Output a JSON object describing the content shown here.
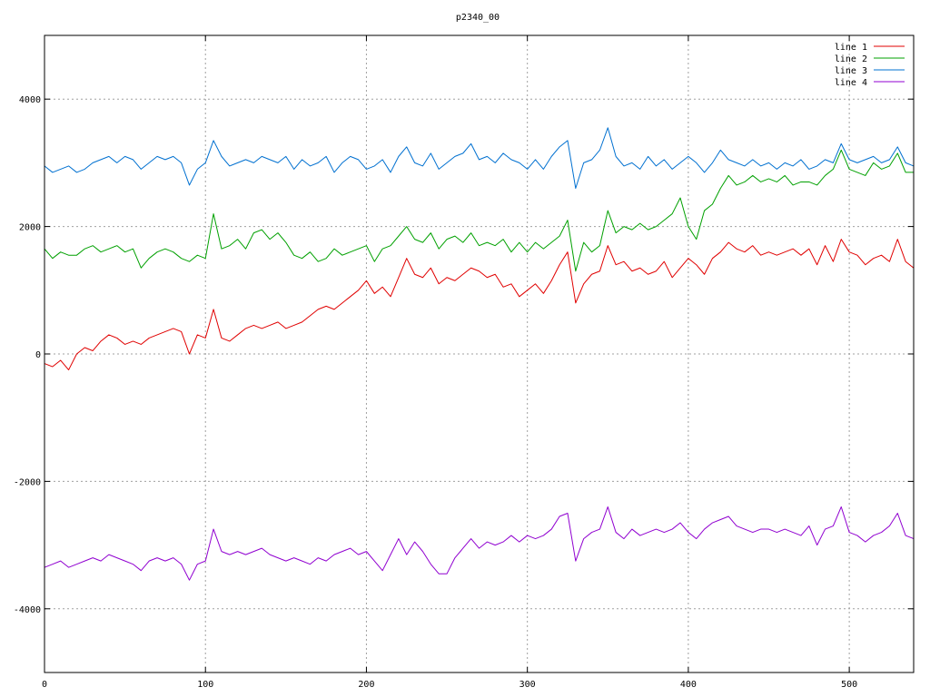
{
  "chart_data": {
    "type": "line",
    "title": "p2340_00",
    "xlabel": "",
    "ylabel": "",
    "xlim": [
      0,
      540
    ],
    "ylim": [
      -5000,
      5000
    ],
    "xticks": [
      0,
      100,
      200,
      300,
      400,
      500
    ],
    "yticks": [
      -4000,
      -2000,
      0,
      2000,
      4000
    ],
    "xtick_labels": [
      "0",
      "100",
      "200",
      "300",
      "400",
      "500"
    ],
    "ytick_labels": [
      "-4000",
      "-2000",
      "0",
      "2000",
      "4000"
    ],
    "grid": true,
    "legend_position": "top-right",
    "x": [
      0,
      5,
      10,
      15,
      20,
      25,
      30,
      35,
      40,
      45,
      50,
      55,
      60,
      65,
      70,
      75,
      80,
      85,
      90,
      95,
      100,
      105,
      110,
      115,
      120,
      125,
      130,
      135,
      140,
      145,
      150,
      155,
      160,
      165,
      170,
      175,
      180,
      185,
      190,
      195,
      200,
      205,
      210,
      215,
      220,
      225,
      230,
      235,
      240,
      245,
      250,
      255,
      260,
      265,
      270,
      275,
      280,
      285,
      290,
      295,
      300,
      305,
      310,
      315,
      320,
      325,
      330,
      335,
      340,
      345,
      350,
      355,
      360,
      365,
      370,
      375,
      380,
      385,
      390,
      395,
      400,
      405,
      410,
      415,
      420,
      425,
      430,
      435,
      440,
      445,
      450,
      455,
      460,
      465,
      470,
      475,
      480,
      485,
      490,
      495,
      500,
      505,
      510,
      515,
      520,
      525,
      530,
      535,
      540
    ],
    "series": [
      {
        "name": "line 1",
        "color": "#e00000",
        "values": [
          -150,
          -200,
          -100,
          -250,
          0,
          100,
          50,
          200,
          300,
          250,
          150,
          200,
          150,
          250,
          300,
          350,
          400,
          350,
          0,
          300,
          250,
          700,
          250,
          200,
          300,
          400,
          450,
          400,
          450,
          500,
          400,
          450,
          500,
          600,
          700,
          750,
          700,
          800,
          900,
          1000,
          1150,
          950,
          1050,
          900,
          1200,
          1500,
          1250,
          1200,
          1350,
          1100,
          1200,
          1150,
          1250,
          1350,
          1300,
          1200,
          1250,
          1050,
          1100,
          900,
          1000,
          1100,
          950,
          1150,
          1400,
          1600,
          800,
          1100,
          1250,
          1300,
          1700,
          1400,
          1450,
          1300,
          1350,
          1250,
          1300,
          1450,
          1200,
          1350,
          1500,
          1400,
          1250,
          1500,
          1600,
          1750,
          1650,
          1600,
          1700,
          1550,
          1600,
          1550,
          1600,
          1650,
          1550,
          1650,
          1400,
          1700,
          1450,
          1800,
          1600,
          1550,
          1400,
          1500,
          1550,
          1450,
          1800,
          1450,
          1350
        ]
      },
      {
        "name": "line 2",
        "color": "#00a000",
        "values": [
          1650,
          1500,
          1600,
          1550,
          1550,
          1650,
          1700,
          1600,
          1650,
          1700,
          1600,
          1650,
          1350,
          1500,
          1600,
          1650,
          1600,
          1500,
          1450,
          1550,
          1500,
          2200,
          1650,
          1700,
          1800,
          1650,
          1900,
          1950,
          1800,
          1900,
          1750,
          1550,
          1500,
          1600,
          1450,
          1500,
          1650,
          1550,
          1600,
          1650,
          1700,
          1450,
          1650,
          1700,
          1850,
          2000,
          1800,
          1750,
          1900,
          1650,
          1800,
          1850,
          1750,
          1900,
          1700,
          1750,
          1700,
          1800,
          1600,
          1750,
          1600,
          1750,
          1650,
          1750,
          1850,
          2100,
          1300,
          1750,
          1600,
          1700,
          2250,
          1900,
          2000,
          1950,
          2050,
          1950,
          2000,
          2100,
          2200,
          2450,
          2000,
          1800,
          2250,
          2350,
          2600,
          2800,
          2650,
          2700,
          2800,
          2700,
          2750,
          2700,
          2800,
          2650,
          2700,
          2700,
          2650,
          2800,
          2900,
          3200,
          2900,
          2850,
          2800,
          3000,
          2900,
          2950,
          3150,
          2850,
          2850
        ]
      },
      {
        "name": "line 3",
        "color": "#0070d0",
        "values": [
          2950,
          2850,
          2900,
          2950,
          2850,
          2900,
          3000,
          3050,
          3100,
          3000,
          3100,
          3050,
          2900,
          3000,
          3100,
          3050,
          3100,
          3000,
          2650,
          2900,
          3000,
          3350,
          3100,
          2950,
          3000,
          3050,
          3000,
          3100,
          3050,
          3000,
          3100,
          2900,
          3050,
          2950,
          3000,
          3100,
          2850,
          3000,
          3100,
          3050,
          2900,
          2950,
          3050,
          2850,
          3100,
          3250,
          3000,
          2950,
          3150,
          2900,
          3000,
          3100,
          3150,
          3300,
          3050,
          3100,
          3000,
          3150,
          3050,
          3000,
          2900,
          3050,
          2900,
          3100,
          3250,
          3350,
          2600,
          3000,
          3050,
          3200,
          3550,
          3100,
          2950,
          3000,
          2900,
          3100,
          2950,
          3050,
          2900,
          3000,
          3100,
          3000,
          2850,
          3000,
          3200,
          3050,
          3000,
          2950,
          3050,
          2950,
          3000,
          2900,
          3000,
          2950,
          3050,
          2900,
          2950,
          3050,
          3000,
          3300,
          3050,
          3000,
          3050,
          3100,
          3000,
          3050,
          3250,
          3000,
          2950
        ]
      },
      {
        "name": "line 4",
        "color": "#9000d0",
        "values": [
          -3350,
          -3300,
          -3250,
          -3350,
          -3300,
          -3250,
          -3200,
          -3250,
          -3150,
          -3200,
          -3250,
          -3300,
          -3400,
          -3250,
          -3200,
          -3250,
          -3200,
          -3300,
          -3550,
          -3300,
          -3250,
          -2750,
          -3100,
          -3150,
          -3100,
          -3150,
          -3100,
          -3050,
          -3150,
          -3200,
          -3250,
          -3200,
          -3250,
          -3300,
          -3200,
          -3250,
          -3150,
          -3100,
          -3050,
          -3150,
          -3100,
          -3250,
          -3400,
          -3150,
          -2900,
          -3150,
          -2950,
          -3100,
          -3300,
          -3450,
          -3450,
          -3200,
          -3050,
          -2900,
          -3050,
          -2950,
          -3000,
          -2950,
          -2850,
          -2950,
          -2850,
          -2900,
          -2850,
          -2750,
          -2550,
          -2500,
          -3250,
          -2900,
          -2800,
          -2750,
          -2400,
          -2800,
          -2900,
          -2750,
          -2850,
          -2800,
          -2750,
          -2800,
          -2750,
          -2650,
          -2800,
          -2900,
          -2750,
          -2650,
          -2600,
          -2550,
          -2700,
          -2750,
          -2800,
          -2750,
          -2750,
          -2800,
          -2750,
          -2800,
          -2850,
          -2700,
          -3000,
          -2750,
          -2700,
          -2400,
          -2800,
          -2850,
          -2950,
          -2850,
          -2800,
          -2700,
          -2500,
          -2850,
          -2900
        ]
      }
    ]
  }
}
